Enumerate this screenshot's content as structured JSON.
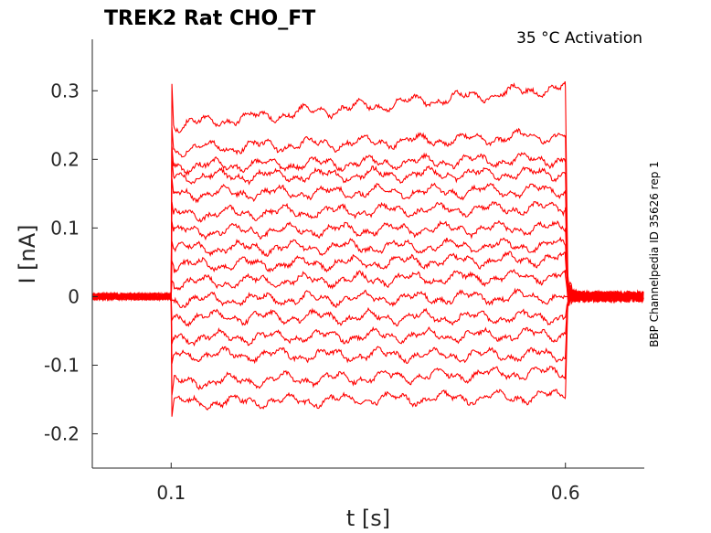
{
  "chart_data": {
    "type": "line",
    "title": "TREK2  Rat  CHO_FT",
    "subtitle": "35 °C  Activation",
    "side_label": "BBP Channelpedia ID 35626 rep 1",
    "xlabel": "t [s]",
    "ylabel": "I [nA]",
    "xlim": [
      0.0,
      0.7
    ],
    "ylim": [
      -0.25,
      0.375
    ],
    "xticks": [
      0.1,
      0.6
    ],
    "xtick_labels": [
      "0.1",
      "0.6"
    ],
    "yticks": [
      -0.2,
      -0.1,
      0,
      0.1,
      0.2,
      0.3
    ],
    "ytick_labels": [
      "-0.2",
      "-0.1",
      "0",
      "0.1",
      "0.2",
      "0.3"
    ],
    "grid": false,
    "pulse": {
      "start": 0.1,
      "end": 0.6
    },
    "series_color": "#ff0000",
    "series": [
      {
        "start": -0.155,
        "end": -0.145
      },
      {
        "start": -0.125,
        "end": -0.11
      },
      {
        "start": -0.085,
        "end": -0.085
      },
      {
        "start": -0.06,
        "end": -0.055
      },
      {
        "start": -0.03,
        "end": -0.03
      },
      {
        "start": -0.005,
        "end": 0.0
      },
      {
        "start": 0.02,
        "end": 0.03
      },
      {
        "start": 0.045,
        "end": 0.055
      },
      {
        "start": 0.07,
        "end": 0.075
      },
      {
        "start": 0.095,
        "end": 0.1
      },
      {
        "start": 0.12,
        "end": 0.13
      },
      {
        "start": 0.15,
        "end": 0.155
      },
      {
        "start": 0.175,
        "end": 0.18
      },
      {
        "start": 0.19,
        "end": 0.2
      },
      {
        "start": 0.215,
        "end": 0.235
      },
      {
        "start": 0.25,
        "end": 0.305
      }
    ]
  }
}
